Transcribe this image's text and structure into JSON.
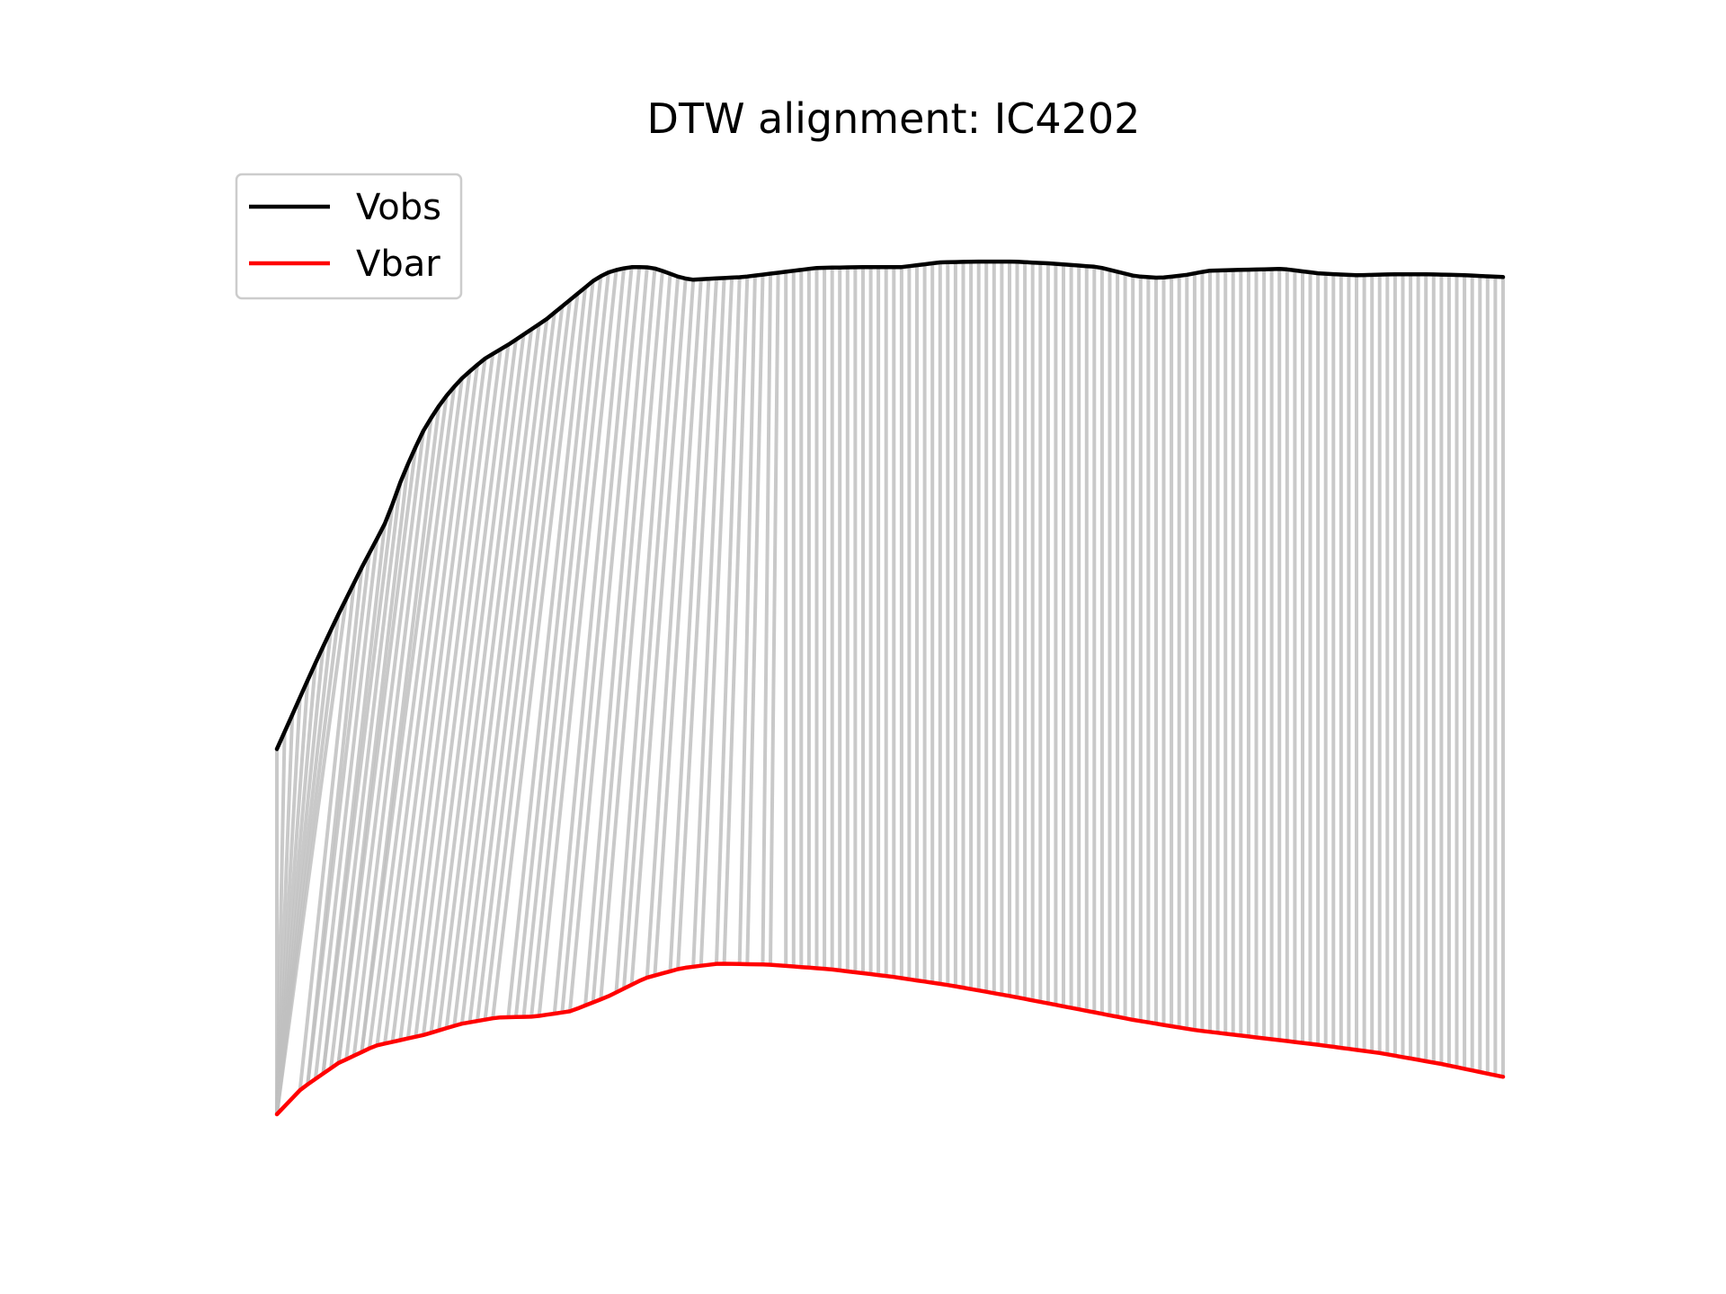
{
  "chart_data": {
    "type": "line",
    "title": "DTW alignment: IC4202",
    "xlabel": "",
    "ylabel": "",
    "axes_visible": false,
    "grid": false,
    "legend_position": "top-left",
    "x_range": [
      0,
      100
    ],
    "y_range": [
      0,
      100
    ],
    "series": [
      {
        "name": "Vobs",
        "color": "#000000",
        "points": [
          [
            0,
            40.0
          ],
          [
            1,
            43.0
          ],
          [
            2,
            46.0
          ],
          [
            3,
            49.0
          ],
          [
            4,
            51.9
          ],
          [
            5,
            54.7
          ],
          [
            6,
            57.4
          ],
          [
            7,
            60.1
          ],
          [
            8,
            62.6
          ],
          [
            9,
            65.2
          ],
          [
            10,
            69.0
          ],
          [
            11,
            72.2
          ],
          [
            12,
            75.0
          ],
          [
            13,
            77.2
          ],
          [
            14,
            79.0
          ],
          [
            15,
            80.5
          ],
          [
            16,
            81.7
          ],
          [
            17,
            82.8
          ],
          [
            18,
            83.6
          ],
          [
            19,
            84.4
          ],
          [
            20,
            85.3
          ],
          [
            21,
            86.2
          ],
          [
            22,
            87.1
          ],
          [
            23,
            88.2
          ],
          [
            24,
            89.3
          ],
          [
            25,
            90.4
          ],
          [
            26,
            91.5
          ],
          [
            27,
            92.2
          ],
          [
            28,
            92.6
          ],
          [
            29,
            92.8
          ],
          [
            30,
            92.8
          ],
          [
            31,
            92.6
          ],
          [
            32,
            92.1
          ],
          [
            33,
            91.6
          ],
          [
            34,
            91.4
          ],
          [
            35,
            91.5
          ],
          [
            38,
            91.7
          ],
          [
            41,
            92.2
          ],
          [
            44,
            92.7
          ],
          [
            48,
            92.8
          ],
          [
            51,
            92.8
          ],
          [
            54,
            93.3
          ],
          [
            57,
            93.4
          ],
          [
            60,
            93.4
          ],
          [
            63,
            93.2
          ],
          [
            67,
            92.8
          ],
          [
            70,
            91.8
          ],
          [
            72,
            91.6
          ],
          [
            74,
            91.9
          ],
          [
            76,
            92.4
          ],
          [
            79,
            92.5
          ],
          [
            82,
            92.6
          ],
          [
            85,
            92.1
          ],
          [
            88,
            91.9
          ],
          [
            91,
            92.0
          ],
          [
            94,
            92.0
          ],
          [
            97,
            91.9
          ],
          [
            100,
            91.7
          ]
        ]
      },
      {
        "name": "Vbar",
        "color": "#ff0000",
        "points": [
          [
            0,
            0.0
          ],
          [
            2,
            2.8
          ],
          [
            5,
            5.6
          ],
          [
            8,
            7.5
          ],
          [
            10,
            8.1
          ],
          [
            12,
            8.7
          ],
          [
            15,
            9.9
          ],
          [
            18,
            10.6
          ],
          [
            21,
            10.7
          ],
          [
            24,
            11.3
          ],
          [
            27,
            12.9
          ],
          [
            30,
            14.9
          ],
          [
            33,
            16.0
          ],
          [
            36,
            16.5
          ],
          [
            40,
            16.4
          ],
          [
            45,
            15.9
          ],
          [
            50,
            15.1
          ],
          [
            55,
            14.1
          ],
          [
            60,
            12.9
          ],
          [
            65,
            11.6
          ],
          [
            70,
            10.3
          ],
          [
            75,
            9.2
          ],
          [
            80,
            8.4
          ],
          [
            85,
            7.6
          ],
          [
            90,
            6.7
          ],
          [
            95,
            5.5
          ],
          [
            100,
            4.1
          ]
        ]
      }
    ]
  }
}
